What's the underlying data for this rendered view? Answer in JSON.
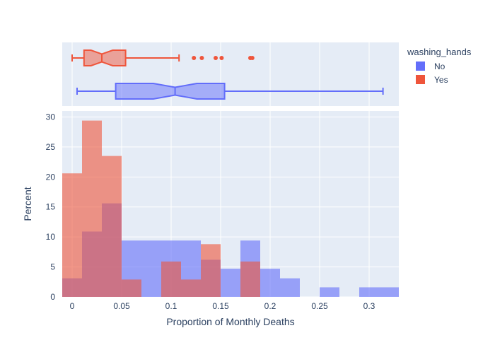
{
  "chart_data": {
    "type": "histogram",
    "xlabel": "Proportion of Monthly Deaths",
    "ylabel": "Percent",
    "xlim": [
      -0.01,
      0.33
    ],
    "ylim": [
      0,
      31
    ],
    "x_ticks": [
      0,
      0.05,
      0.1,
      0.15,
      0.2,
      0.25,
      0.3
    ],
    "x_tick_labels": [
      "0",
      "0.05",
      "0.1",
      "0.15",
      "0.2",
      "0.25",
      "0.3"
    ],
    "y_ticks": [
      0,
      5,
      10,
      15,
      20,
      25,
      30
    ],
    "y_tick_labels": [
      "0",
      "5",
      "10",
      "15",
      "20",
      "25",
      "30"
    ],
    "bin_width": 0.02,
    "legend": {
      "title": "washing_hands",
      "position": "top-right",
      "entries": [
        {
          "name": "No",
          "color": "#636efa"
        },
        {
          "name": "Yes",
          "color": "#ef553b"
        }
      ]
    },
    "series": [
      {
        "name": "No",
        "color": "#636efa",
        "bins": [
          {
            "x0": -0.01,
            "x1": 0.01,
            "value": 3.1
          },
          {
            "x0": 0.01,
            "x1": 0.03,
            "value": 10.9
          },
          {
            "x0": 0.03,
            "x1": 0.05,
            "value": 15.6
          },
          {
            "x0": 0.05,
            "x1": 0.07,
            "value": 9.4
          },
          {
            "x0": 0.07,
            "x1": 0.09,
            "value": 9.4
          },
          {
            "x0": 0.09,
            "x1": 0.11,
            "value": 9.4
          },
          {
            "x0": 0.11,
            "x1": 0.13,
            "value": 9.4
          },
          {
            "x0": 0.13,
            "x1": 0.15,
            "value": 6.2
          },
          {
            "x0": 0.15,
            "x1": 0.17,
            "value": 4.7
          },
          {
            "x0": 0.17,
            "x1": 0.19,
            "value": 9.4
          },
          {
            "x0": 0.19,
            "x1": 0.21,
            "value": 4.7
          },
          {
            "x0": 0.21,
            "x1": 0.23,
            "value": 3.1
          },
          {
            "x0": 0.25,
            "x1": 0.27,
            "value": 1.6
          },
          {
            "x0": 0.29,
            "x1": 0.31,
            "value": 1.6
          },
          {
            "x0": 0.31,
            "x1": 0.33,
            "value": 1.6
          }
        ],
        "box": {
          "min": 0.005,
          "q1": 0.044,
          "median": 0.104,
          "q3": 0.154,
          "max": 0.314,
          "notch_low": 0.082,
          "notch_high": 0.126,
          "outliers": []
        }
      },
      {
        "name": "Yes",
        "color": "#ef553b",
        "bins": [
          {
            "x0": -0.01,
            "x1": 0.01,
            "value": 20.6
          },
          {
            "x0": 0.01,
            "x1": 0.03,
            "value": 29.4
          },
          {
            "x0": 0.03,
            "x1": 0.05,
            "value": 23.5
          },
          {
            "x0": 0.05,
            "x1": 0.07,
            "value": 2.9
          },
          {
            "x0": 0.09,
            "x1": 0.11,
            "value": 5.9
          },
          {
            "x0": 0.11,
            "x1": 0.13,
            "value": 2.9
          },
          {
            "x0": 0.13,
            "x1": 0.15,
            "value": 8.8
          },
          {
            "x0": 0.17,
            "x1": 0.19,
            "value": 5.9
          }
        ],
        "box": {
          "min": 0.0,
          "q1": 0.012,
          "median": 0.03,
          "q3": 0.054,
          "max": 0.108,
          "notch_low": 0.019,
          "notch_high": 0.041,
          "outliers": [
            0.123,
            0.131,
            0.145,
            0.151,
            0.18,
            0.182
          ]
        }
      }
    ]
  }
}
